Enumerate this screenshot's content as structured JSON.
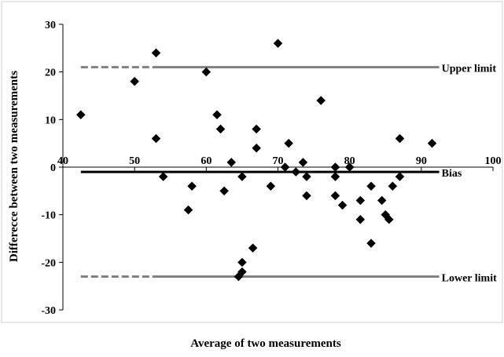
{
  "chart_data": {
    "type": "scatter",
    "title": "",
    "xlabel": "Average of two measurements",
    "ylabel": "Differecce between two measurements",
    "xlim": [
      40,
      100
    ],
    "ylim": [
      -30,
      30
    ],
    "xticks": [
      40,
      50,
      60,
      70,
      80,
      90,
      100
    ],
    "yticks": [
      -30,
      -20,
      -10,
      0,
      10,
      20,
      30
    ],
    "grid": false,
    "marker": "diamond",
    "marker_color": "#000000",
    "points": [
      {
        "x": 42.5,
        "y": 11
      },
      {
        "x": 50,
        "y": 18
      },
      {
        "x": 53,
        "y": 24
      },
      {
        "x": 53,
        "y": 6
      },
      {
        "x": 54,
        "y": -2
      },
      {
        "x": 57.5,
        "y": -9
      },
      {
        "x": 58,
        "y": -4
      },
      {
        "x": 60,
        "y": 20
      },
      {
        "x": 61.5,
        "y": 11
      },
      {
        "x": 62,
        "y": 8
      },
      {
        "x": 62.5,
        "y": -5
      },
      {
        "x": 63.5,
        "y": 1
      },
      {
        "x": 64.5,
        "y": -23
      },
      {
        "x": 65,
        "y": -22
      },
      {
        "x": 65,
        "y": -20
      },
      {
        "x": 65,
        "y": -2
      },
      {
        "x": 66.5,
        "y": -17
      },
      {
        "x": 67,
        "y": 8
      },
      {
        "x": 67,
        "y": 4
      },
      {
        "x": 69,
        "y": -4
      },
      {
        "x": 70,
        "y": 26
      },
      {
        "x": 71,
        "y": 0
      },
      {
        "x": 71.5,
        "y": 5
      },
      {
        "x": 72.5,
        "y": -1
      },
      {
        "x": 73.5,
        "y": 1
      },
      {
        "x": 74,
        "y": -2
      },
      {
        "x": 74,
        "y": -6
      },
      {
        "x": 76,
        "y": 14
      },
      {
        "x": 78,
        "y": 0
      },
      {
        "x": 78,
        "y": -2
      },
      {
        "x": 78,
        "y": -6
      },
      {
        "x": 79,
        "y": -8
      },
      {
        "x": 80,
        "y": 0
      },
      {
        "x": 81.5,
        "y": -7
      },
      {
        "x": 81.5,
        "y": -11
      },
      {
        "x": 83,
        "y": -4
      },
      {
        "x": 83,
        "y": -16
      },
      {
        "x": 84.5,
        "y": -7
      },
      {
        "x": 85,
        "y": -10
      },
      {
        "x": 85.5,
        "y": -11
      },
      {
        "x": 86,
        "y": -4
      },
      {
        "x": 87,
        "y": -2
      },
      {
        "x": 87,
        "y": 6
      },
      {
        "x": 91.5,
        "y": 5
      }
    ],
    "reference_lines": [
      {
        "label": "Upper limit",
        "y": 21,
        "x_start": 42.5,
        "x_end": 92.5,
        "dashed_until_x": 53,
        "color": "#808080"
      },
      {
        "label": "Bias",
        "y": -1,
        "x_start": 42.5,
        "x_end": 92.5,
        "dashed_until_x": null,
        "color": "#000000"
      },
      {
        "label": "Lower limit",
        "y": -23,
        "x_start": 42.5,
        "x_end": 92.5,
        "dashed_until_x": 53,
        "color": "#808080"
      }
    ]
  }
}
